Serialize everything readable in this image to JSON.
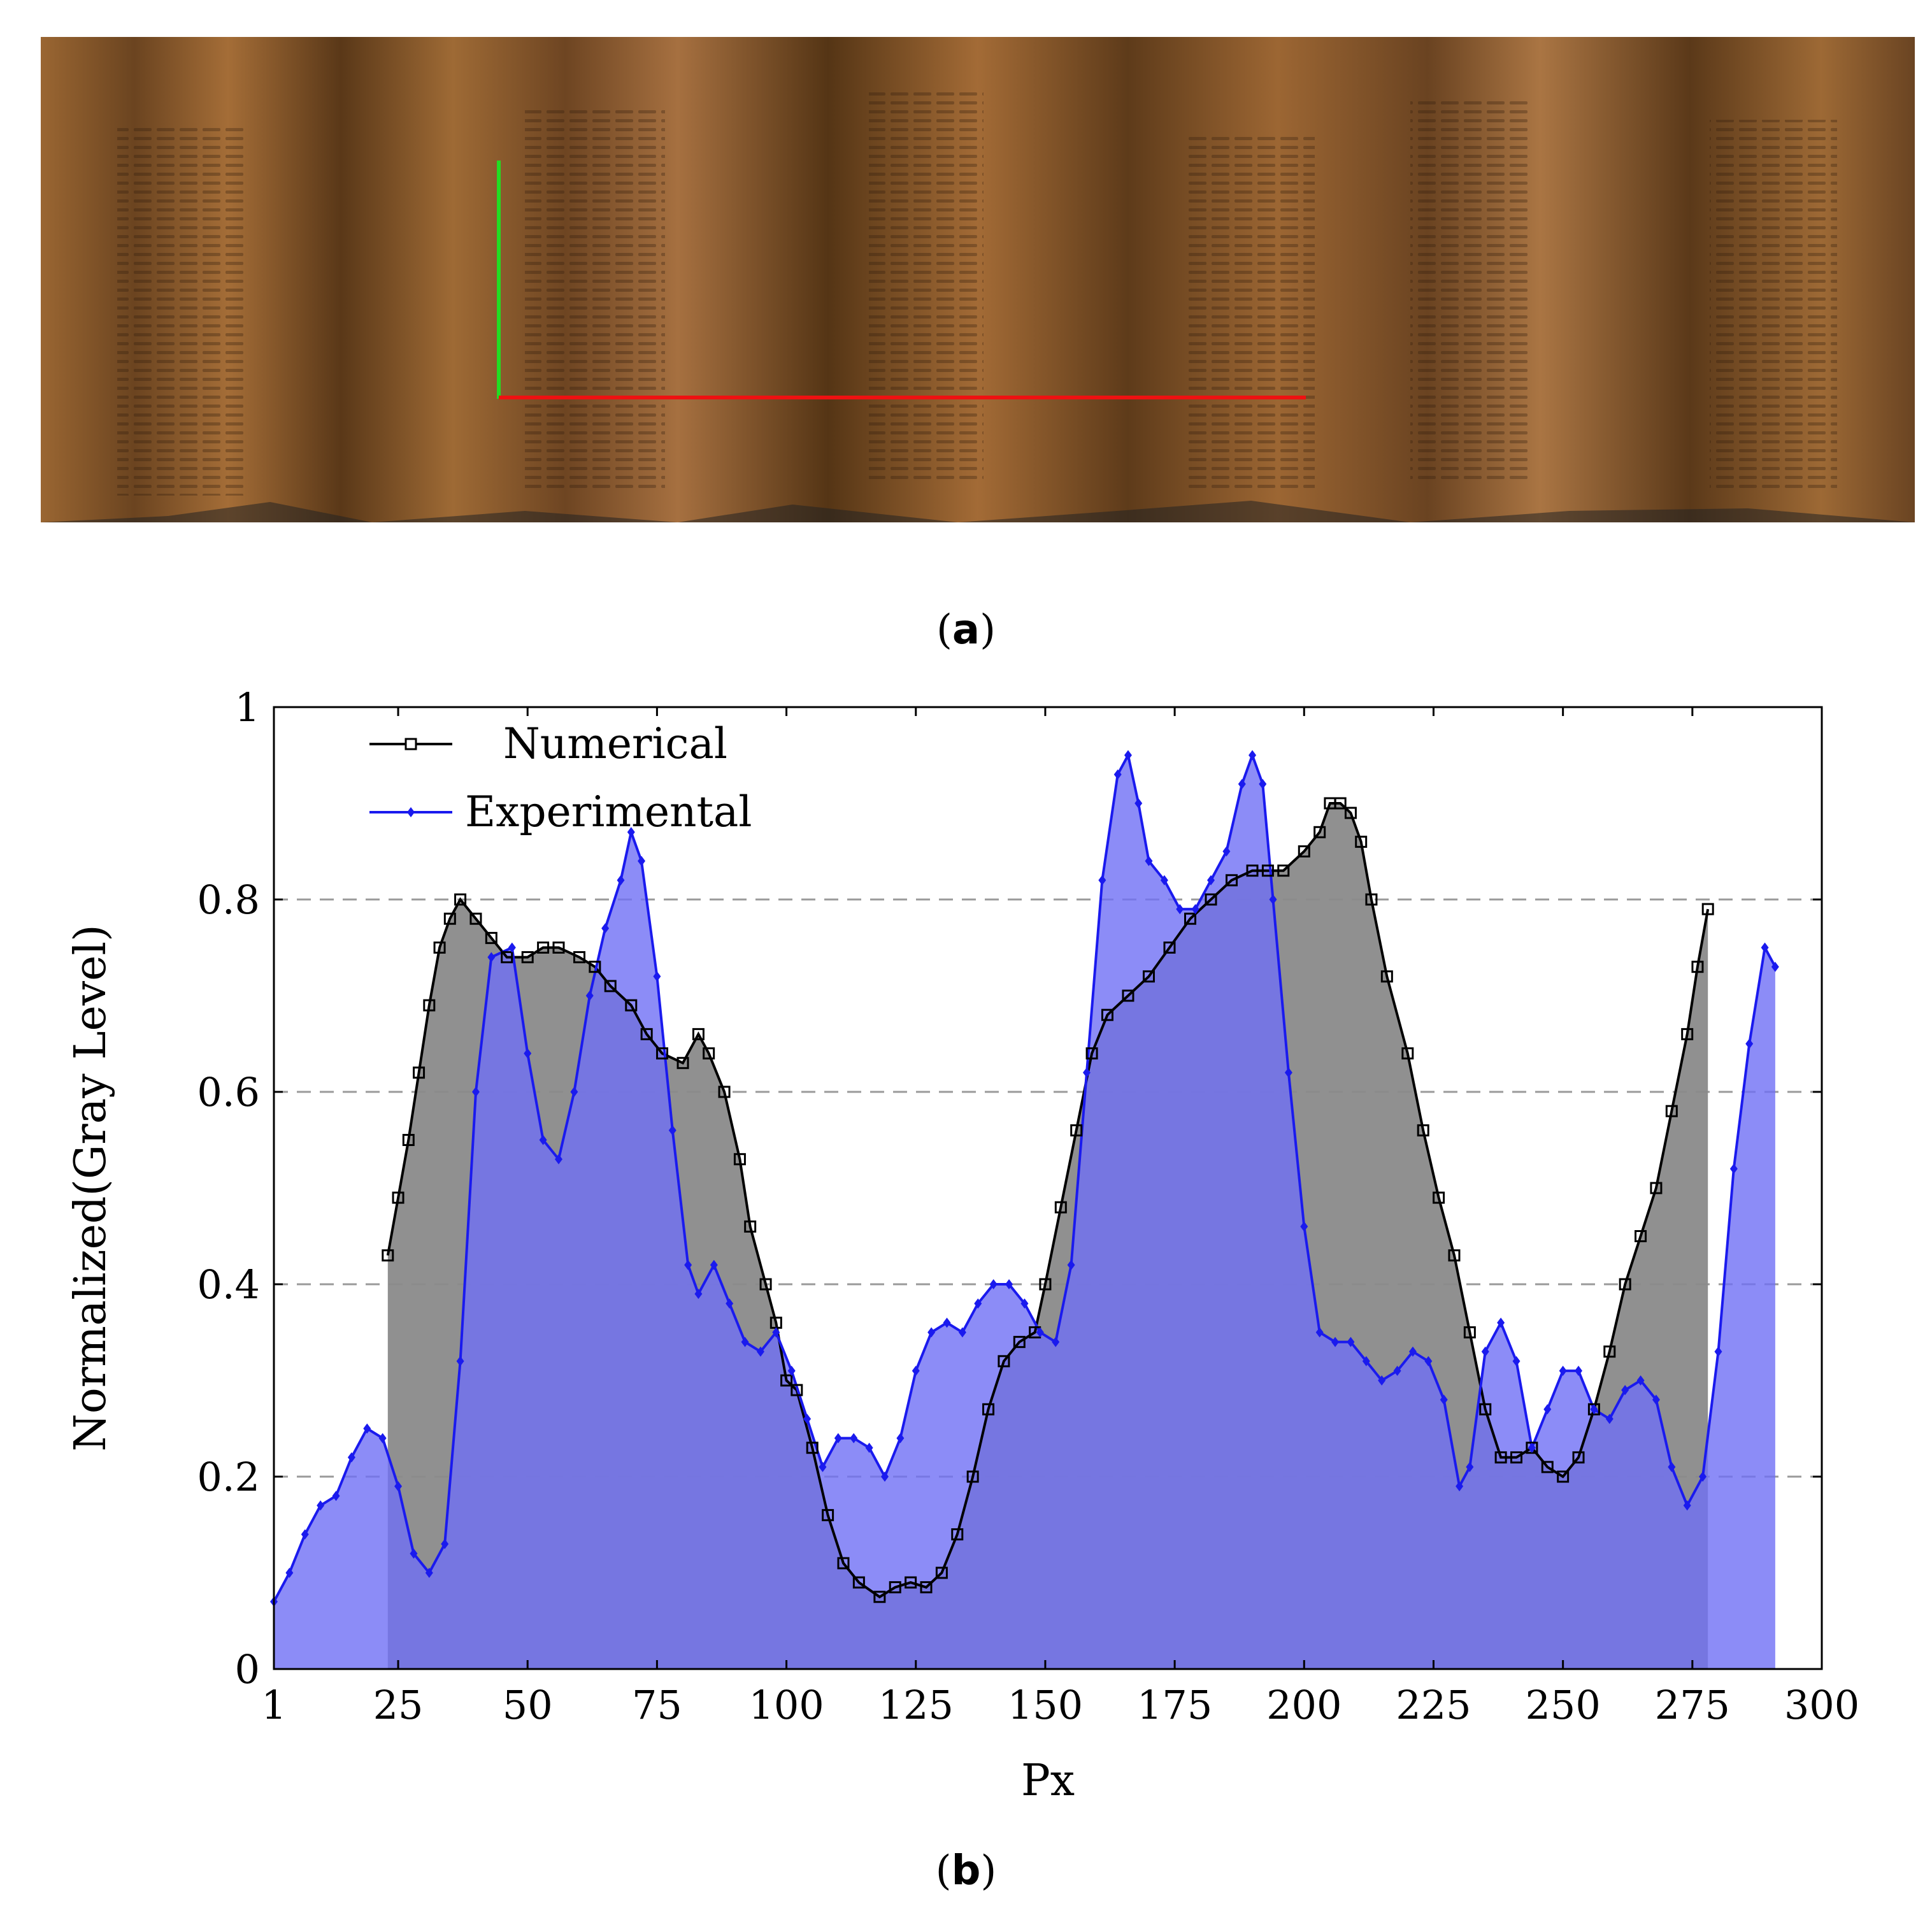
{
  "captions": {
    "a": "a",
    "b": "b"
  },
  "photo": {
    "description_colors": {
      "wood_dark": "#4a2c12",
      "wood_mid": "#8a5a2b",
      "wood_light": "#b88250",
      "vertical_marker": "#22dd22",
      "horizontal_marker": "#ee1111"
    }
  },
  "chart_data": {
    "type": "area",
    "xlabel": "Px",
    "ylabel": "Normalized(Gray Level)",
    "xlim": [
      1,
      300
    ],
    "ylim": [
      0,
      1
    ],
    "xticks": [
      1,
      25,
      50,
      75,
      100,
      125,
      150,
      175,
      200,
      225,
      250,
      275,
      300
    ],
    "yticks": [
      0,
      0.2,
      0.4,
      0.6,
      0.8,
      1
    ],
    "ytick_labels": [
      "0",
      "0.2",
      "0.4",
      "0.6",
      "0.8",
      "1"
    ],
    "grid": "horizontal dashed",
    "legend": "top-left",
    "series": [
      {
        "name": "Numerical",
        "color": "#000000",
        "fill": "#8a8a8a",
        "marker": "square",
        "x": [
          23,
          25,
          27,
          29,
          31,
          33,
          35,
          37,
          40,
          43,
          46,
          50,
          53,
          56,
          60,
          63,
          66,
          70,
          73,
          76,
          80,
          83,
          85,
          88,
          91,
          93,
          96,
          98,
          100,
          102,
          105,
          108,
          111,
          114,
          118,
          121,
          124,
          127,
          130,
          133,
          136,
          139,
          142,
          145,
          148,
          150,
          153,
          156,
          159,
          162,
          166,
          170,
          174,
          178,
          182,
          186,
          190,
          193,
          196,
          200,
          203,
          205,
          207,
          209,
          211,
          213,
          216,
          220,
          223,
          226,
          229,
          232,
          235,
          238,
          241,
          244,
          247,
          250,
          253,
          256,
          259,
          262,
          265,
          268,
          271,
          274,
          276,
          278
        ],
        "y": [
          0.43,
          0.49,
          0.55,
          0.62,
          0.69,
          0.75,
          0.78,
          0.8,
          0.78,
          0.76,
          0.74,
          0.74,
          0.75,
          0.75,
          0.74,
          0.73,
          0.71,
          0.69,
          0.66,
          0.64,
          0.63,
          0.66,
          0.64,
          0.6,
          0.53,
          0.46,
          0.4,
          0.36,
          0.3,
          0.29,
          0.23,
          0.16,
          0.11,
          0.09,
          0.075,
          0.085,
          0.09,
          0.085,
          0.1,
          0.14,
          0.2,
          0.27,
          0.32,
          0.34,
          0.35,
          0.4,
          0.48,
          0.56,
          0.64,
          0.68,
          0.7,
          0.72,
          0.75,
          0.78,
          0.8,
          0.82,
          0.83,
          0.83,
          0.83,
          0.85,
          0.87,
          0.9,
          0.9,
          0.89,
          0.86,
          0.8,
          0.72,
          0.64,
          0.56,
          0.49,
          0.43,
          0.35,
          0.27,
          0.22,
          0.22,
          0.23,
          0.21,
          0.2,
          0.22,
          0.27,
          0.33,
          0.4,
          0.45,
          0.5,
          0.58,
          0.66,
          0.73,
          0.79
        ]
      },
      {
        "name": "Experimental",
        "color": "#1a1aee",
        "fill": "#6f6ff5",
        "marker": "diamond",
        "x": [
          1,
          4,
          7,
          10,
          13,
          16,
          19,
          22,
          25,
          28,
          31,
          34,
          37,
          40,
          43,
          47,
          50,
          53,
          56,
          59,
          62,
          65,
          68,
          70,
          72,
          75,
          78,
          81,
          83,
          86,
          89,
          92,
          95,
          98,
          101,
          104,
          107,
          110,
          113,
          116,
          119,
          122,
          125,
          128,
          131,
          134,
          137,
          140,
          143,
          146,
          149,
          152,
          155,
          158,
          161,
          164,
          166,
          168,
          170,
          173,
          176,
          179,
          182,
          185,
          188,
          190,
          192,
          194,
          197,
          200,
          203,
          206,
          209,
          212,
          215,
          218,
          221,
          224,
          227,
          230,
          232,
          235,
          238,
          241,
          244,
          247,
          250,
          253,
          256,
          259,
          262,
          265,
          268,
          271,
          274,
          277,
          280,
          283,
          286,
          289,
          291
        ],
        "y": [
          0.07,
          0.1,
          0.14,
          0.17,
          0.18,
          0.22,
          0.25,
          0.24,
          0.19,
          0.12,
          0.1,
          0.13,
          0.32,
          0.6,
          0.74,
          0.75,
          0.64,
          0.55,
          0.53,
          0.6,
          0.7,
          0.77,
          0.82,
          0.87,
          0.84,
          0.72,
          0.56,
          0.42,
          0.39,
          0.42,
          0.38,
          0.34,
          0.33,
          0.35,
          0.31,
          0.26,
          0.21,
          0.24,
          0.24,
          0.23,
          0.2,
          0.24,
          0.31,
          0.35,
          0.36,
          0.35,
          0.38,
          0.4,
          0.4,
          0.38,
          0.35,
          0.34,
          0.42,
          0.62,
          0.82,
          0.93,
          0.95,
          0.9,
          0.84,
          0.82,
          0.79,
          0.79,
          0.82,
          0.85,
          0.92,
          0.95,
          0.92,
          0.8,
          0.62,
          0.46,
          0.35,
          0.34,
          0.34,
          0.32,
          0.3,
          0.31,
          0.33,
          0.32,
          0.28,
          0.19,
          0.21,
          0.33,
          0.36,
          0.32,
          0.23,
          0.27,
          0.31,
          0.31,
          0.27,
          0.26,
          0.29,
          0.3,
          0.28,
          0.21,
          0.17,
          0.2,
          0.33,
          0.52,
          0.65,
          0.75,
          0.73
        ]
      }
    ]
  }
}
